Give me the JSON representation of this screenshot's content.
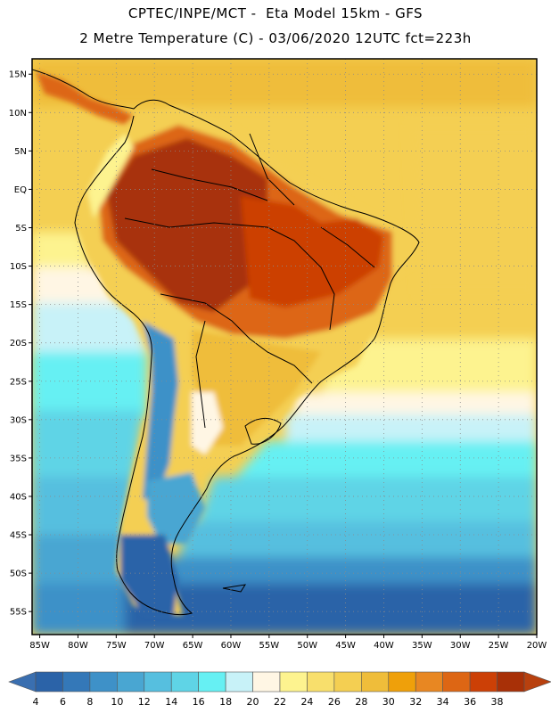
{
  "header": {
    "line1": "CPTEC/INPE/MCT -  Eta Model 15km - GFS",
    "line2": "2 Metre Temperature (C) - 03/06/2020 12UTC fct=223h"
  },
  "map": {
    "region": "South America",
    "lon_range": [
      -86,
      -20
    ],
    "lat_range": [
      -58,
      17
    ],
    "lat_ticks": [
      {
        "value": 15,
        "label": "15N"
      },
      {
        "value": 10,
        "label": "10N"
      },
      {
        "value": 5,
        "label": "5N"
      },
      {
        "value": 0,
        "label": "EQ"
      },
      {
        "value": -5,
        "label": "5S"
      },
      {
        "value": -10,
        "label": "10S"
      },
      {
        "value": -15,
        "label": "15S"
      },
      {
        "value": -20,
        "label": "20S"
      },
      {
        "value": -25,
        "label": "25S"
      },
      {
        "value": -30,
        "label": "30S"
      },
      {
        "value": -35,
        "label": "35S"
      },
      {
        "value": -40,
        "label": "40S"
      },
      {
        "value": -45,
        "label": "45S"
      },
      {
        "value": -50,
        "label": "50S"
      },
      {
        "value": -55,
        "label": "55S"
      }
    ],
    "lon_ticks": [
      {
        "value": -85,
        "label": "85W"
      },
      {
        "value": -80,
        "label": "80W"
      },
      {
        "value": -75,
        "label": "75W"
      },
      {
        "value": -70,
        "label": "70W"
      },
      {
        "value": -65,
        "label": "65W"
      },
      {
        "value": -60,
        "label": "60W"
      },
      {
        "value": -55,
        "label": "55W"
      },
      {
        "value": -50,
        "label": "50W"
      },
      {
        "value": -45,
        "label": "45W"
      },
      {
        "value": -40,
        "label": "40W"
      },
      {
        "value": -35,
        "label": "35W"
      },
      {
        "value": -30,
        "label": "30W"
      },
      {
        "value": -25,
        "label": "25W"
      },
      {
        "value": -20,
        "label": "20W"
      }
    ]
  },
  "colorbar": {
    "labels": [
      "4",
      "6",
      "8",
      "10",
      "12",
      "14",
      "16",
      "18",
      "20",
      "22",
      "24",
      "26",
      "28",
      "30",
      "32",
      "34",
      "36",
      "38"
    ],
    "colors": [
      "#2b63a8",
      "#3478b8",
      "#3e91c8",
      "#49a6d2",
      "#56bfdf",
      "#5fd4e6",
      "#66f0f3",
      "#c8f2f8",
      "#fff6e4",
      "#fdf38f",
      "#f8df6c",
      "#f4cf52",
      "#efbd3a",
      "#efa00a",
      "#e88722",
      "#dd6614",
      "#cc4006",
      "#a83007"
    ],
    "low_color": "#3a6fb0",
    "high_color": "#b8400e"
  }
}
